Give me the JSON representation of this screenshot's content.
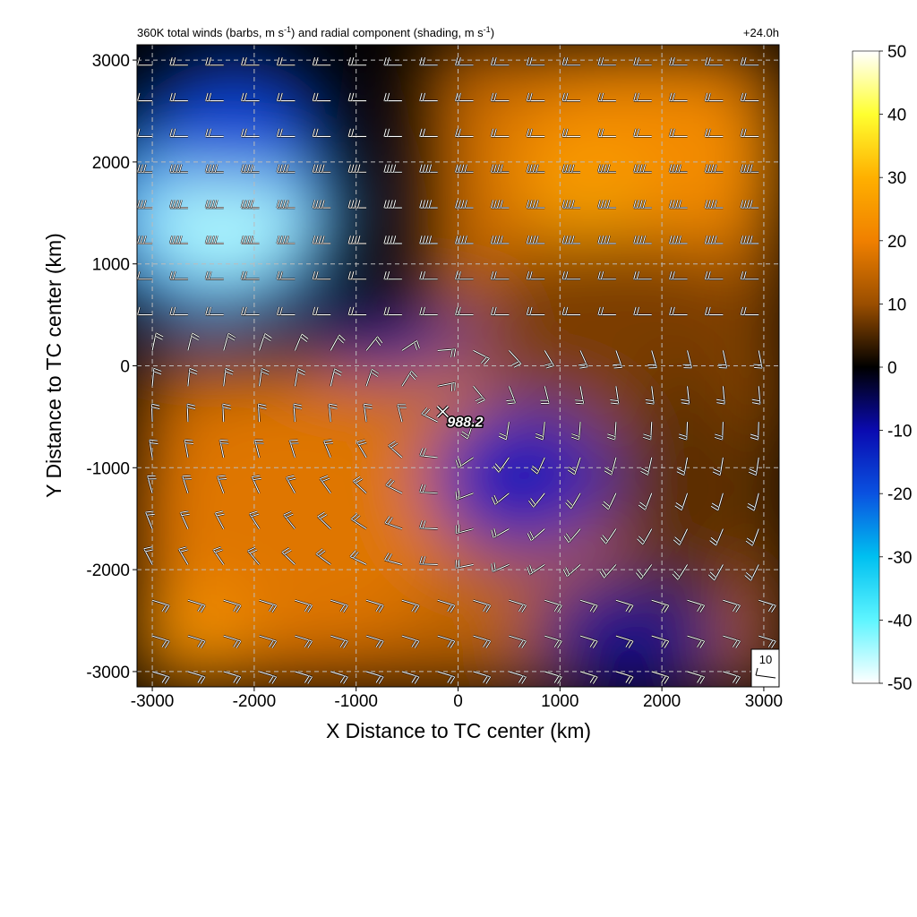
{
  "chart_data": {
    "type": "heatmap",
    "title_main": "360K total winds (barbs, m s",
    "title_sup1": "-1",
    "title_mid": ") and radial component (shading, m s",
    "title_sup2": "-1",
    "title_end": ")",
    "time_label": "+24.0h",
    "xlabel": "X Distance to TC center (km)",
    "ylabel": "Y Distance to TC center (km)",
    "xlim": [
      -3150,
      3150
    ],
    "ylim": [
      -3150,
      3150
    ],
    "xticks": [
      -3000,
      -2000,
      -1000,
      0,
      1000,
      2000,
      3000
    ],
    "yticks": [
      -3000,
      -2000,
      -1000,
      0,
      1000,
      2000,
      3000
    ],
    "grid": "dashed",
    "colorbar": {
      "range": [
        -50,
        50
      ],
      "ticks": [
        50,
        40,
        30,
        20,
        10,
        0,
        -10,
        -20,
        -30,
        -40,
        -50
      ],
      "stops": [
        {
          "value": -50,
          "color": "#ffffff"
        },
        {
          "value": -40,
          "color": "#5ef5ff"
        },
        {
          "value": -30,
          "color": "#00c0f0"
        },
        {
          "value": -20,
          "color": "#0a52e0"
        },
        {
          "value": -10,
          "color": "#0a0ab0"
        },
        {
          "value": 0,
          "color": "#000000"
        },
        {
          "value": 10,
          "color": "#9a4e00"
        },
        {
          "value": 20,
          "color": "#f08000"
        },
        {
          "value": 30,
          "color": "#ffb000"
        },
        {
          "value": 40,
          "color": "#ffff30"
        },
        {
          "value": 50,
          "color": "#ffffff"
        }
      ]
    },
    "shading_regions": [
      {
        "x": -2400,
        "y": 1500,
        "rx": 1300,
        "ry": 1100,
        "value": -25
      },
      {
        "x": -2300,
        "y": 1400,
        "rx": 850,
        "ry": 600,
        "value": -45
      },
      {
        "x": -2200,
        "y": 2400,
        "rx": 900,
        "ry": 600,
        "value": -18
      },
      {
        "x": 1800,
        "y": 2000,
        "rx": 1400,
        "ry": 900,
        "value": 22
      },
      {
        "x": 1300,
        "y": 1700,
        "rx": 600,
        "ry": 400,
        "value": 27
      },
      {
        "x": 1600,
        "y": 400,
        "rx": 1500,
        "ry": 900,
        "value": 8
      },
      {
        "x": -1600,
        "y": -1500,
        "rx": 1600,
        "ry": 1300,
        "value": 18
      },
      {
        "x": -2600,
        "y": -2600,
        "rx": 600,
        "ry": 400,
        "value": 24
      },
      {
        "x": 600,
        "y": -1100,
        "rx": 900,
        "ry": 700,
        "value": -12
      },
      {
        "x": 1700,
        "y": -2600,
        "rx": 1000,
        "ry": 600,
        "value": -8
      },
      {
        "x": 2300,
        "y": -1200,
        "rx": 800,
        "ry": 1200,
        "value": 6
      },
      {
        "x": -150,
        "y": -300,
        "rx": 200,
        "ry": 150,
        "value": 25
      },
      {
        "x": -600,
        "y": 250,
        "rx": 900,
        "ry": 250,
        "value": -10
      }
    ],
    "tc_center": {
      "x": -150,
      "y": -450,
      "label": "988.2"
    },
    "reference_barb": {
      "label": "10",
      "speed": 10
    },
    "barb_grid": {
      "x_start": -3000,
      "x_end": 3000,
      "y_start": -3000,
      "y_end": 3000,
      "spacing": 350
    }
  }
}
